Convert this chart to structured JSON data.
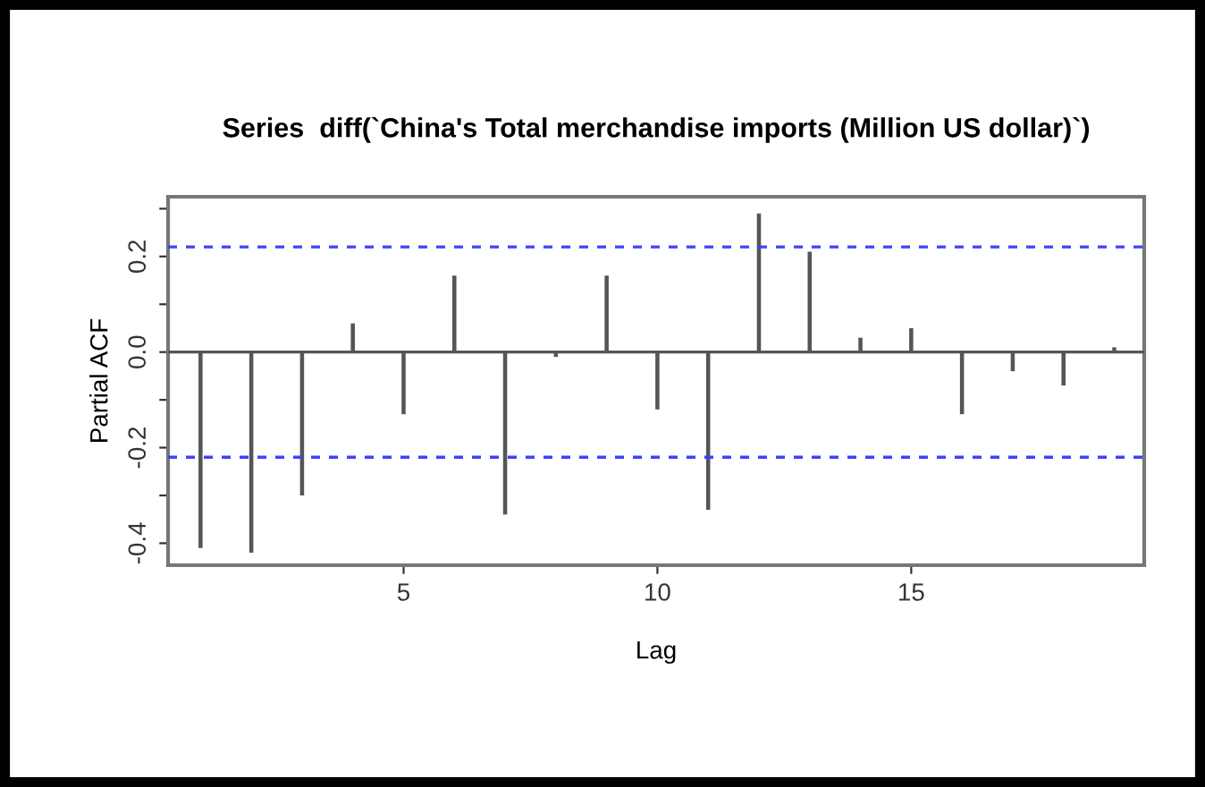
{
  "chart_data": {
    "type": "bar",
    "title": "Series  diff(`China's Total merchandise imports (Million US dollar)`)",
    "xlabel": "Lag",
    "ylabel": "Partial ACF",
    "x": [
      1,
      2,
      3,
      4,
      5,
      6,
      7,
      8,
      9,
      10,
      11,
      12,
      13,
      14,
      15,
      16,
      17,
      18,
      19
    ],
    "series": [
      {
        "color": "#555555",
        "values": [
          -0.41,
          -0.42,
          -0.3,
          0.06,
          -0.13,
          0.16,
          -0.34,
          -0.01,
          0.16,
          -0.12,
          -0.33,
          0.29,
          0.21,
          0.03,
          0.05,
          -0.13,
          -0.04,
          -0.07,
          0.01
        ]
      }
    ],
    "xlim": [
      0.36,
      19.59
    ],
    "ylim": [
      -0.446,
      0.325
    ],
    "xticks": [
      5,
      10,
      15
    ],
    "yticks": [
      {
        "value": -0.4,
        "label": "-0.4"
      },
      {
        "value": -0.3,
        "label": null
      },
      {
        "value": -0.2,
        "label": "-0.2"
      },
      {
        "value": -0.1,
        "label": null
      },
      {
        "value": 0.0,
        "label": "0.0"
      },
      {
        "value": 0.1,
        "label": null
      },
      {
        "value": 0.2,
        "label": "0.2"
      },
      {
        "value": 0.3,
        "label": null
      }
    ],
    "ref_lines": [
      {
        "axis": "y",
        "value": 0,
        "color": "#555555",
        "line_style": "solid"
      },
      {
        "axis": "y",
        "value": 0.22,
        "color": "#4040ff",
        "line_style": "dashed"
      },
      {
        "axis": "y",
        "value": -0.22,
        "color": "#4040ff",
        "line_style": "dashed"
      }
    ],
    "grid": false,
    "legend": false
  }
}
